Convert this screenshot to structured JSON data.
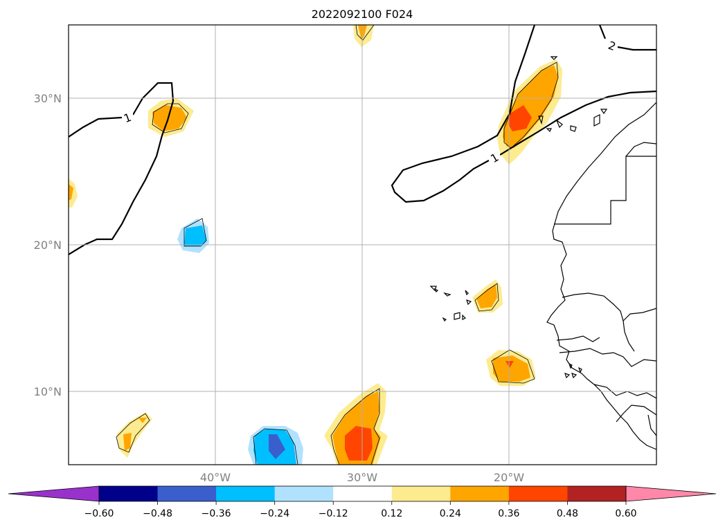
{
  "title": "2022092100 F024",
  "map": {
    "projection": "PlateCarree",
    "extent_lon": [
      -50,
      -10
    ],
    "extent_lat": [
      5,
      35
    ],
    "y_ticks": [
      {
        "value": 30,
        "label": "30°N"
      },
      {
        "value": 20,
        "label": "20°N"
      },
      {
        "value": 10,
        "label": "10°N"
      }
    ],
    "x_ticks": [
      {
        "value": -40,
        "label": "40°W"
      },
      {
        "value": -30,
        "label": "30°W"
      },
      {
        "value": -20,
        "label": "20°W"
      }
    ],
    "contour_labels": [
      {
        "text": "1",
        "lon": -43.8,
        "lat": 28.4
      },
      {
        "text": "1",
        "lon": -21.0,
        "lat": 25.8
      },
      {
        "text": "2",
        "lon": -14.0,
        "lat": 33.2
      }
    ]
  },
  "colorbar": {
    "levels": [
      -0.72,
      -0.6,
      -0.48,
      -0.36,
      -0.24,
      -0.12,
      0.12,
      0.24,
      0.36,
      0.48,
      0.6,
      0.72
    ],
    "colors": [
      "#9932cc",
      "#00008b",
      "#3a5fcd",
      "#00bfff",
      "#b0e2ff",
      "#ffffff",
      "#fdeb8f",
      "#ffa500",
      "#ff4500",
      "#b22222",
      "#ff88aa"
    ],
    "under_color": "#9932cc",
    "over_color": "#ff88aa",
    "tick_labels": [
      "−0.60",
      "−0.48",
      "−0.36",
      "−0.24",
      "−0.12",
      "0.12",
      "0.24",
      "0.36",
      "0.48",
      "0.60"
    ]
  }
}
